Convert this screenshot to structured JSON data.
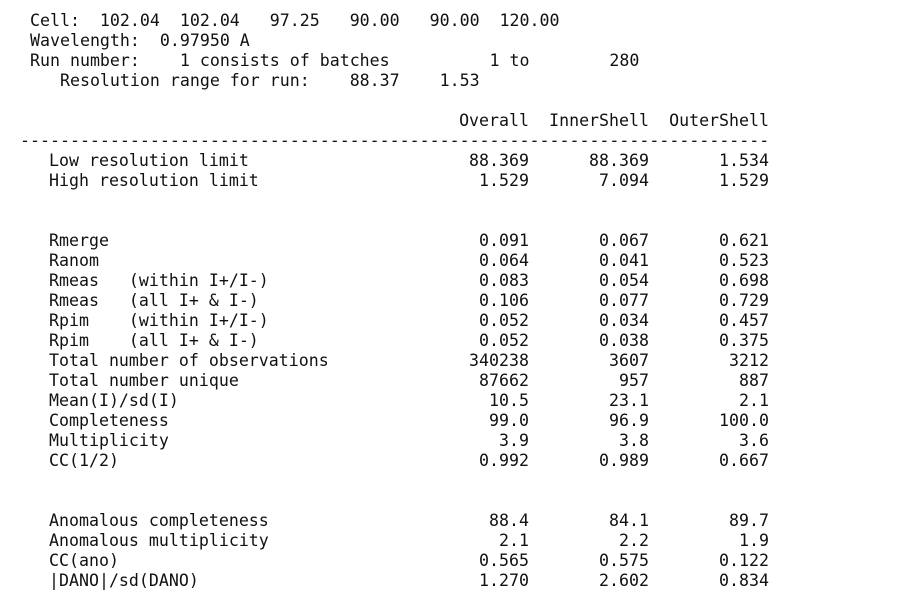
{
  "header": {
    "lines": [
      "Cell:  102.04  102.04   97.25   90.00   90.00  120.00",
      "Wavelength:  0.97950 A",
      "Run number:    1 consists of batches          1 to        280",
      "   Resolution range for run:    88.37    1.53"
    ]
  },
  "table": {
    "columns": [
      "Overall",
      "InnerShell",
      "OuterShell"
    ],
    "rule": "---------------------------------------------------------------------------",
    "sections": [
      {
        "rows": [
          [
            "Low resolution limit",
            "88.369",
            "88.369",
            "1.534"
          ],
          [
            "High resolution limit",
            "1.529",
            "7.094",
            "1.529"
          ]
        ]
      },
      {
        "rows": [
          [
            "Rmerge",
            "0.091",
            "0.067",
            "0.621"
          ],
          [
            "Ranom",
            "0.064",
            "0.041",
            "0.523"
          ],
          [
            "Rmeas   (within I+/I-)",
            "0.083",
            "0.054",
            "0.698"
          ],
          [
            "Rmeas   (all I+ & I-)",
            "0.106",
            "0.077",
            "0.729"
          ],
          [
            "Rpim    (within I+/I-)",
            "0.052",
            "0.034",
            "0.457"
          ],
          [
            "Rpim    (all I+ & I-)",
            "0.052",
            "0.038",
            "0.375"
          ],
          [
            "Total number of observations",
            "340238",
            "3607",
            "3212"
          ],
          [
            "Total number unique",
            "87662",
            "957",
            "887"
          ],
          [
            "Mean(I)/sd(I)",
            "10.5",
            "23.1",
            "2.1"
          ],
          [
            "Completeness",
            "99.0",
            "96.9",
            "100.0"
          ],
          [
            "Multiplicity",
            "3.9",
            "3.8",
            "3.6"
          ],
          [
            "CC(1/2)",
            "0.992",
            "0.989",
            "0.667"
          ]
        ]
      },
      {
        "rows": [
          [
            "Anomalous completeness",
            "88.4",
            "84.1",
            "89.7"
          ],
          [
            "Anomalous multiplicity",
            "2.1",
            "2.2",
            "1.9"
          ],
          [
            "CC(ano)",
            "0.565",
            "0.575",
            "0.122"
          ],
          [
            "|DANO|/sd(DANO)",
            "1.270",
            "2.602",
            "0.834"
          ]
        ]
      }
    ]
  }
}
